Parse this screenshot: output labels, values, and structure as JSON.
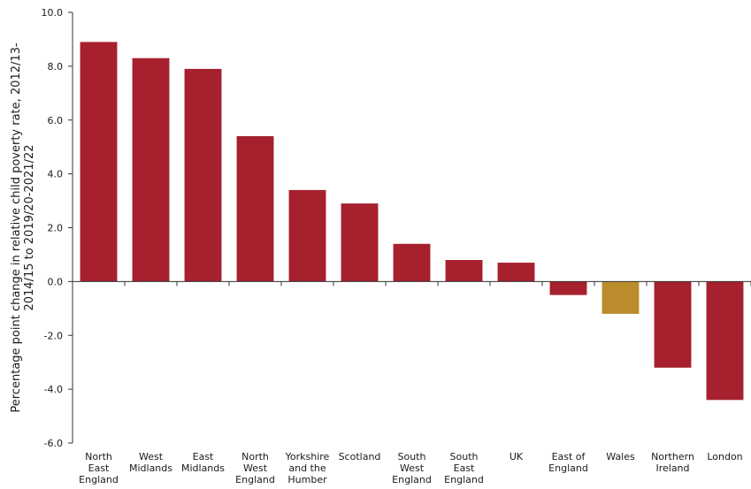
{
  "chart_data": {
    "type": "bar",
    "title": "",
    "xlabel": "",
    "ylabel": "Percentage point change in relative child poverty rate, 2012/13-2014/15 to 2019/20-2021/22",
    "ylabel_lines": [
      "Percentage point change in relative child poverty rate, 2012/13-",
      "2014/15 to 2019/20-2021/22"
    ],
    "ylim": [
      -6.0,
      10.0
    ],
    "yticks": [
      "10.0",
      "8.0",
      "6.0",
      "4.0",
      "2.0",
      "0.0",
      "-2.0",
      "-4.0",
      "-6.0"
    ],
    "ytick_values": [
      10,
      8,
      6,
      4,
      2,
      0,
      -2,
      -4,
      -6
    ],
    "grid": false,
    "categories": [
      "North East England",
      "West Midlands",
      "East Midlands",
      "North West England",
      "Yorkshire and the Humber",
      "Scotland",
      "South West England",
      "South East England",
      "UK",
      "East of England",
      "Wales",
      "Northern Ireland",
      "London"
    ],
    "category_lines": [
      [
        "North",
        "East",
        "England"
      ],
      [
        "West",
        "Midlands"
      ],
      [
        "East",
        "Midlands"
      ],
      [
        "North",
        "West",
        "England"
      ],
      [
        "Yorkshire",
        "and the",
        "Humber"
      ],
      [
        "Scotland"
      ],
      [
        "South",
        "West",
        "England"
      ],
      [
        "South",
        "East",
        "England"
      ],
      [
        "UK"
      ],
      [
        "East of",
        "England"
      ],
      [
        "Wales"
      ],
      [
        "Northern",
        "Ireland"
      ],
      [
        "London"
      ]
    ],
    "values": [
      8.9,
      8.3,
      7.9,
      5.4,
      3.4,
      2.9,
      1.4,
      0.8,
      0.7,
      -0.5,
      -1.2,
      -3.2,
      -4.4
    ],
    "colors": {
      "default": "#a6202e",
      "highlight": "#bb8c2c",
      "highlight_category": "Wales",
      "axis": "#333333"
    }
  }
}
